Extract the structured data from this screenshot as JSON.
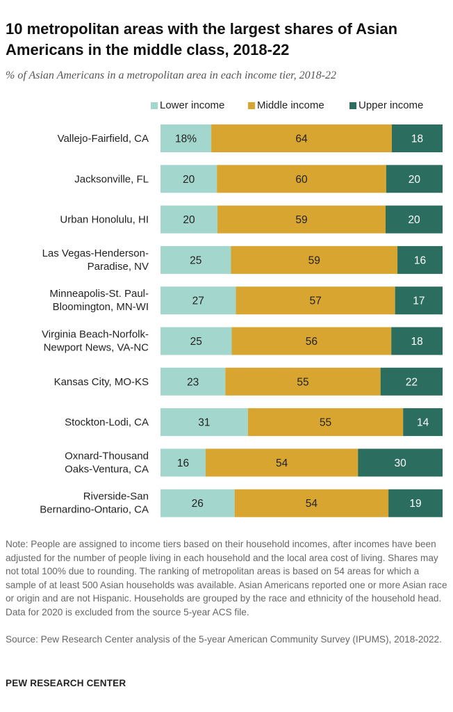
{
  "header": {
    "title": "10 metropolitan areas with the largest shares of Asian Americans in the middle class, 2018-22",
    "subtitle": "% of Asian Americans in a metropolitan area in each income tier, 2018-22"
  },
  "footer": {
    "note": "Note: People are assigned to income tiers based on their household incomes, after incomes have been adjusted for the number of people living in each household and the local area cost of living. Shares may not total 100% due to rounding. The ranking of metropolitan areas is based on 54 areas for which a sample of at least 500 Asian households was available. Asian Americans reported one or more Asian race or origin and are not Hispanic. Households are grouped by the race and ethnicity of the household head. Data for 2020 is excluded from the source 5-year ACS file.",
    "source": "Source: Pew Research Center analysis of the 5-year American Community Survey (IPUMS), 2018-2022.",
    "branding": "PEW RESEARCH CENTER"
  },
  "colors": {
    "lower": "#a3d6cc",
    "middle": "#d7a530",
    "upper": "#2b6e5f",
    "text_dark": "#222222",
    "text_light": "#ffffff"
  },
  "chart_data": {
    "type": "bar",
    "orientation": "horizontal",
    "stacked": true,
    "title": "10 metropolitan areas with the largest shares of Asian Americans in the middle class, 2018-22",
    "subtitle": "% of Asian Americans in a metropolitan area in each income tier, 2018-22",
    "categories": [
      [
        "Vallejo-Fairfield, CA"
      ],
      [
        "Jacksonville, FL"
      ],
      [
        "Urban Honolulu, HI"
      ],
      [
        "Las Vegas-Henderson-",
        "Paradise, NV"
      ],
      [
        "Minneapolis-St. Paul-",
        "Bloomington, MN-WI"
      ],
      [
        "Virginia Beach-Norfolk-",
        "Newport News, VA-NC"
      ],
      [
        "Kansas City, MO-KS"
      ],
      [
        "Stockton-Lodi, CA"
      ],
      [
        "Oxnard-Thousand",
        "Oaks-Ventura, CA"
      ],
      [
        "Riverside-San",
        "Bernardino-Ontario, CA"
      ]
    ],
    "series": [
      {
        "name": "Lower income",
        "key": "lower",
        "values": [
          18,
          20,
          20,
          25,
          27,
          25,
          23,
          31,
          16,
          26
        ],
        "labels": [
          "18%",
          "20",
          "20",
          "25",
          "27",
          "25",
          "23",
          "31",
          "16",
          "26"
        ]
      },
      {
        "name": "Middle income",
        "key": "middle",
        "values": [
          64,
          60,
          59,
          59,
          57,
          56,
          55,
          55,
          54,
          54
        ],
        "labels": [
          "64",
          "60",
          "59",
          "59",
          "57",
          "56",
          "55",
          "55",
          "54",
          "54"
        ]
      },
      {
        "name": "Upper income",
        "key": "upper",
        "values": [
          18,
          20,
          20,
          16,
          17,
          18,
          22,
          14,
          30,
          19
        ],
        "labels": [
          "18",
          "20",
          "20",
          "16",
          "17",
          "18",
          "22",
          "14",
          "30",
          "19"
        ]
      }
    ],
    "xlim": [
      0,
      100
    ],
    "legend": "top",
    "grid": false
  }
}
